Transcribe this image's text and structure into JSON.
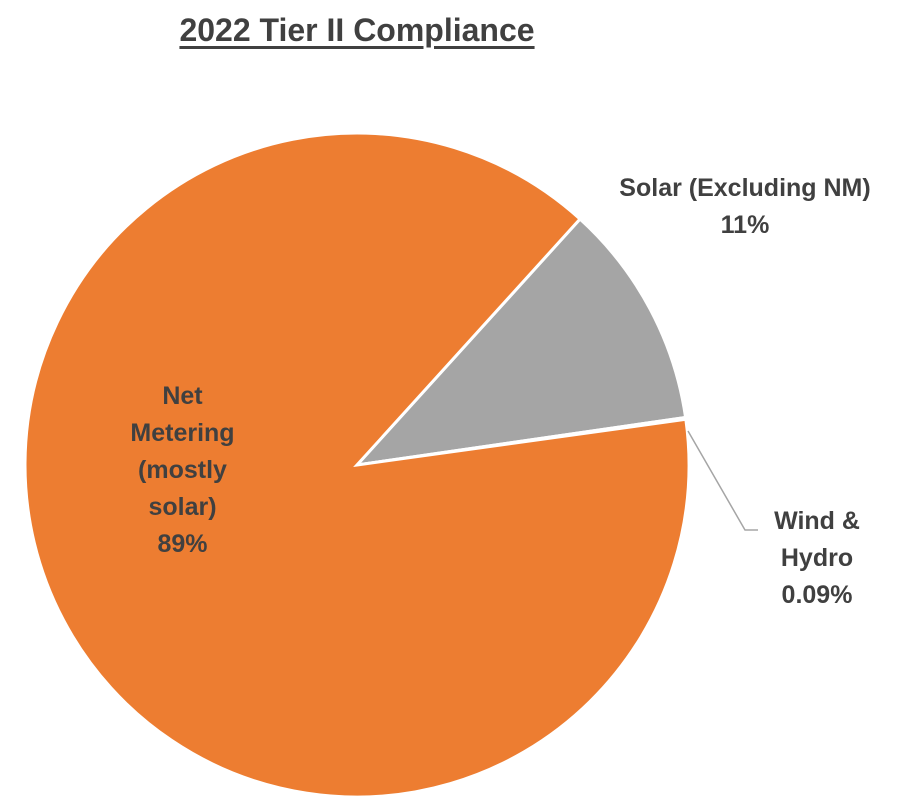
{
  "chart_data": {
    "type": "pie",
    "title": "2022 Tier II Compliance",
    "categories": [
      "Solar (Excluding NM)",
      "Wind & Hydro",
      "Net Metering (mostly solar)"
    ],
    "values": [
      11,
      0.09,
      89
    ],
    "value_labels": [
      "11%",
      "0.09%",
      "89%"
    ],
    "colors": [
      "#A5A5A5",
      "#FFC000",
      "#ED7D31"
    ]
  }
}
